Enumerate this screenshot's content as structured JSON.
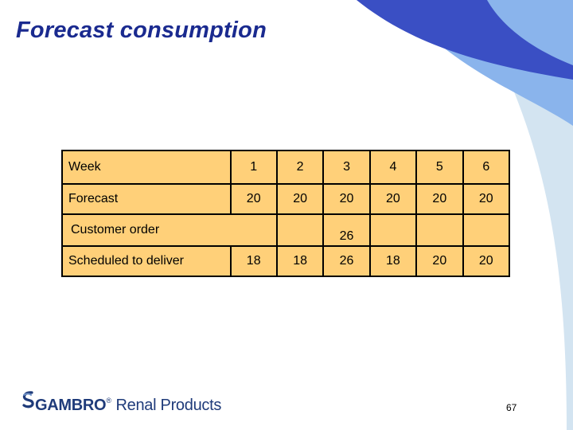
{
  "slide": {
    "title": "Forecast consumption",
    "page_number": "67"
  },
  "table": {
    "rows": [
      {
        "label": "Week",
        "cells": [
          "1",
          "2",
          "3",
          "4",
          "5",
          "6"
        ]
      },
      {
        "label": "Forecast",
        "cells": [
          "20",
          "20",
          "20",
          "20",
          "20",
          "20"
        ]
      },
      {
        "label": "Customer order",
        "cells": [
          "",
          "",
          "26",
          "",
          "",
          ""
        ]
      },
      {
        "label": "Scheduled to deliver",
        "cells": [
          "18",
          "18",
          "26",
          "18",
          "20",
          "20"
        ]
      }
    ]
  },
  "logo": {
    "brand": "GAMBRO",
    "registered": "®",
    "tagline": "Renal Products"
  },
  "colors": {
    "title": "#1a2a8f",
    "table_fill": "#ffd079",
    "decor_dark_blue": "#3a4fc4",
    "decor_mid_blue": "#8ab4ec",
    "decor_light_blue": "#d3e4f1"
  }
}
